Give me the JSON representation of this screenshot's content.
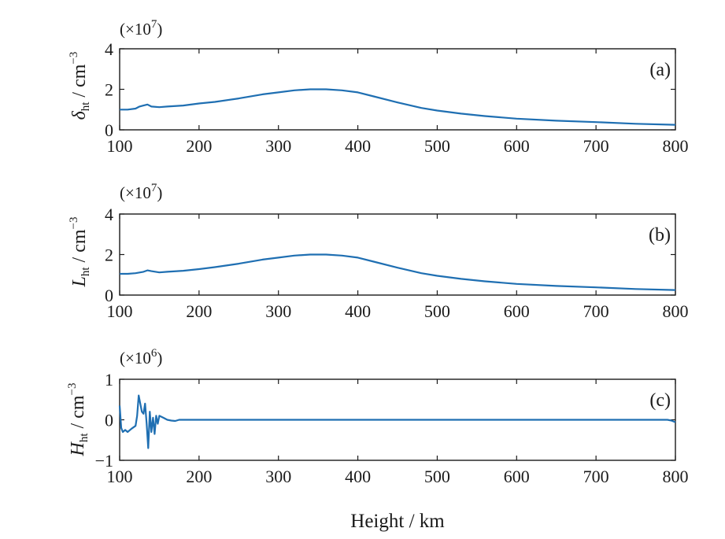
{
  "chart_data": [
    {
      "type": "line",
      "panel_label": "(a)",
      "multiplier": {
        "base": "(×10",
        "exp": "7",
        "close": ")"
      },
      "ylabel": {
        "symbol": "δ",
        "subscript": "ht",
        "unit": " / cm",
        "unit_exp": "−3"
      },
      "xlim": [
        100,
        800
      ],
      "ylim": [
        0,
        4
      ],
      "xticks": [
        100,
        200,
        300,
        400,
        500,
        600,
        700,
        800
      ],
      "yticks": [
        0,
        2,
        4
      ],
      "ytick_labels": [
        "0",
        "2",
        "4"
      ],
      "series": [
        {
          "x": [
            100,
            110,
            120,
            125,
            130,
            135,
            140,
            150,
            160,
            180,
            200,
            220,
            250,
            280,
            300,
            320,
            340,
            360,
            380,
            400,
            420,
            450,
            480,
            500,
            530,
            560,
            600,
            650,
            700,
            750,
            800
          ],
          "y": [
            1.0,
            1.0,
            1.05,
            1.15,
            1.2,
            1.25,
            1.15,
            1.12,
            1.15,
            1.2,
            1.3,
            1.38,
            1.55,
            1.75,
            1.85,
            1.95,
            2.0,
            2.0,
            1.95,
            1.85,
            1.65,
            1.35,
            1.08,
            0.95,
            0.8,
            0.68,
            0.55,
            0.45,
            0.38,
            0.3,
            0.25
          ]
        }
      ]
    },
    {
      "type": "line",
      "panel_label": "(b)",
      "multiplier": {
        "base": "(×10",
        "exp": "7",
        "close": ")"
      },
      "ylabel": {
        "symbol": "L",
        "subscript": "ht",
        "unit": " / cm",
        "unit_exp": "−3"
      },
      "xlim": [
        100,
        800
      ],
      "ylim": [
        0,
        4
      ],
      "xticks": [
        100,
        200,
        300,
        400,
        500,
        600,
        700,
        800
      ],
      "yticks": [
        0,
        2,
        4
      ],
      "ytick_labels": [
        "0",
        "2",
        "4"
      ],
      "series": [
        {
          "x": [
            100,
            110,
            120,
            130,
            135,
            140,
            150,
            160,
            180,
            200,
            220,
            250,
            280,
            300,
            320,
            340,
            360,
            380,
            400,
            420,
            450,
            480,
            500,
            530,
            560,
            600,
            650,
            700,
            750,
            800
          ],
          "y": [
            1.05,
            1.05,
            1.08,
            1.15,
            1.22,
            1.18,
            1.12,
            1.15,
            1.2,
            1.28,
            1.38,
            1.55,
            1.75,
            1.85,
            1.95,
            2.0,
            2.0,
            1.95,
            1.85,
            1.65,
            1.35,
            1.08,
            0.95,
            0.8,
            0.68,
            0.55,
            0.45,
            0.38,
            0.3,
            0.25
          ]
        }
      ]
    },
    {
      "type": "line",
      "panel_label": "(c)",
      "multiplier": {
        "base": "(×10",
        "exp": "6",
        "close": ")"
      },
      "ylabel": {
        "symbol": "H",
        "subscript": "ht",
        "unit": " / cm",
        "unit_exp": "−3"
      },
      "xlabel": "Height / km",
      "xlim": [
        100,
        800
      ],
      "ylim": [
        -1,
        1
      ],
      "xticks": [
        100,
        200,
        300,
        400,
        500,
        600,
        700,
        800
      ],
      "yticks": [
        -1,
        0,
        1
      ],
      "ytick_labels": [
        "−1",
        "0",
        "1"
      ],
      "series": [
        {
          "x": [
            100,
            102,
            104,
            107,
            110,
            115,
            120,
            122,
            124,
            126,
            128,
            130,
            132,
            134,
            136,
            138,
            140,
            142,
            144,
            146,
            148,
            150,
            155,
            160,
            165,
            170,
            175,
            200,
            300,
            400,
            500,
            600,
            700,
            780,
            790,
            795,
            800
          ],
          "y": [
            0.35,
            -0.2,
            -0.3,
            -0.25,
            -0.3,
            -0.22,
            -0.15,
            0.1,
            0.6,
            0.4,
            0.2,
            0.15,
            0.4,
            -0.1,
            -0.7,
            0.2,
            -0.3,
            0.05,
            -0.35,
            0.1,
            -0.1,
            0.1,
            0.05,
            0.0,
            -0.02,
            -0.03,
            0.0,
            0.0,
            0.0,
            0.0,
            0.0,
            0.0,
            0.0,
            0.0,
            0.0,
            -0.02,
            -0.06
          ]
        }
      ]
    }
  ]
}
